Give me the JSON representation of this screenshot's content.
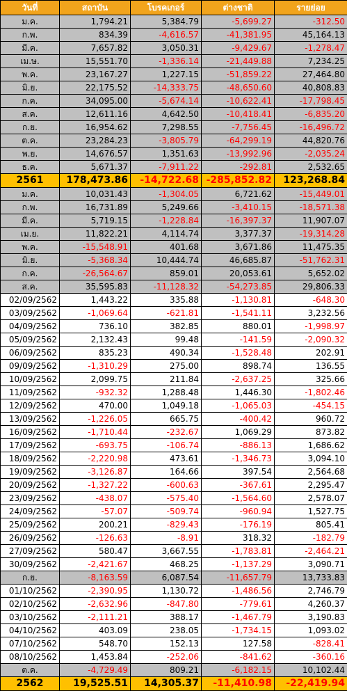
{
  "headers": [
    "วันที่",
    "สถาบัน",
    "โบรคเกอร์",
    "ต่างชาติ",
    "รายย่อย"
  ],
  "rows": [
    {
      "type": "month",
      "label": "ม.ค.",
      "values": [
        "1,794.21",
        "5,384.79",
        "-5,699.27",
        "-312.50"
      ]
    },
    {
      "type": "month",
      "label": "ก.พ.",
      "values": [
        "834.39",
        "-4,616.57",
        "-41,381.95",
        "45,164.13"
      ]
    },
    {
      "type": "month",
      "label": "มี.ค.",
      "values": [
        "7,657.82",
        "3,050.31",
        "-9,429.67",
        "-1,278.47"
      ]
    },
    {
      "type": "month",
      "label": "เม.ษ.",
      "values": [
        "15,551.70",
        "-1,336.14",
        "-21,449.88",
        "7,234.25"
      ]
    },
    {
      "type": "month",
      "label": "พ.ค.",
      "values": [
        "23,167.27",
        "1,227.15",
        "-51,859.22",
        "27,464.80"
      ]
    },
    {
      "type": "month",
      "label": "มิ.ย.",
      "values": [
        "22,175.52",
        "-14,333.75",
        "-48,650.60",
        "40,808.83"
      ]
    },
    {
      "type": "month",
      "label": "ก.ค.",
      "values": [
        "34,095.00",
        "-5,674.14",
        "-10,622.41",
        "-17,798.45"
      ]
    },
    {
      "type": "month",
      "label": "ส.ค.",
      "values": [
        "12,611.16",
        "4,642.50",
        "-10,418.41",
        "-6,835.20"
      ]
    },
    {
      "type": "month",
      "label": "ก.ย.",
      "values": [
        "16,954.62",
        "7,298.55",
        "-7,756.45",
        "-16,496.72"
      ]
    },
    {
      "type": "month",
      "label": "ต.ค.",
      "values": [
        "23,284.23",
        "-3,805.79",
        "-64,299.19",
        "44,820.76"
      ]
    },
    {
      "type": "month",
      "label": "พ.ย.",
      "values": [
        "14,676.57",
        "1,351.63",
        "-13,992.96",
        "-2,035.24"
      ]
    },
    {
      "type": "month",
      "label": "ธ.ค.",
      "values": [
        "5,671.37",
        "-7,911.22",
        "-292.81",
        "2,532.65"
      ]
    },
    {
      "type": "year",
      "label": "2561",
      "values": [
        "178,473.86",
        "-14,722.68",
        "-285,852.82",
        "123,268.84"
      ]
    },
    {
      "type": "month",
      "label": "ม.ค.",
      "values": [
        "10,031.43",
        "-1,304.05",
        "6,721.62",
        "-15,449.01"
      ]
    },
    {
      "type": "month",
      "label": "ก.พ.",
      "values": [
        "16,731.89",
        "5,249.66",
        "-3,410.15",
        "-18,571.38"
      ]
    },
    {
      "type": "month",
      "label": "มี.ค.",
      "values": [
        "5,719.15",
        "-1,228.84",
        "-16,397.37",
        "11,907.07"
      ]
    },
    {
      "type": "month",
      "label": "เม.ย.",
      "values": [
        "11,822.21",
        "4,114.74",
        "3,377.37",
        "-19,314.28"
      ]
    },
    {
      "type": "month",
      "label": "พ.ค.",
      "values": [
        "-15,548.91",
        "401.68",
        "3,671.86",
        "11,475.35"
      ]
    },
    {
      "type": "month",
      "label": "มิ.ย.",
      "values": [
        "-5,368.34",
        "10,444.74",
        "46,685.87",
        "-51,762.31"
      ]
    },
    {
      "type": "month",
      "label": "ก.ค.",
      "values": [
        "-26,564.67",
        "859.01",
        "20,053.61",
        "5,652.02"
      ]
    },
    {
      "type": "month",
      "label": "ส.ค.",
      "values": [
        "35,595.83",
        "-11,128.32",
        "-54,273.85",
        "29,806.33"
      ]
    },
    {
      "type": "day",
      "label": "02/09/2562",
      "values": [
        "1,443.22",
        "335.88",
        "-1,130.81",
        "-648.30"
      ]
    },
    {
      "type": "day",
      "label": "03/09/2562",
      "values": [
        "-1,069.64",
        "-621.81",
        "-1,541.11",
        "3,232.56"
      ]
    },
    {
      "type": "day",
      "label": "04/09/2562",
      "values": [
        "736.10",
        "382.85",
        "880.01",
        "-1,998.97"
      ]
    },
    {
      "type": "day",
      "label": "05/09/2562",
      "values": [
        "2,132.43",
        "99.48",
        "-141.59",
        "-2,090.32"
      ]
    },
    {
      "type": "day",
      "label": "06/09/2562",
      "values": [
        "835.23",
        "490.34",
        "-1,528.48",
        "202.91"
      ]
    },
    {
      "type": "day",
      "label": "09/09/2562",
      "values": [
        "-1,310.29",
        "275.00",
        "898.74",
        "136.55"
      ]
    },
    {
      "type": "day",
      "label": "10/09/2562",
      "values": [
        "2,099.75",
        "211.84",
        "-2,637.25",
        "325.66"
      ]
    },
    {
      "type": "day",
      "label": "11/09/2562",
      "values": [
        "-932.32",
        "1,288.48",
        "1,446.30",
        "-1,802.46"
      ]
    },
    {
      "type": "day",
      "label": "12/09/2562",
      "values": [
        "470.00",
        "1,049.18",
        "-1,065.03",
        "-454.15"
      ]
    },
    {
      "type": "day",
      "label": "13/09/2562",
      "values": [
        "-1,226.05",
        "665.75",
        "-400.42",
        "960.72"
      ]
    },
    {
      "type": "day",
      "label": "16/09/2562",
      "values": [
        "-1,710.44",
        "-232.67",
        "1,069.29",
        "873.82"
      ]
    },
    {
      "type": "day",
      "label": "17/09/2562",
      "values": [
        "-693.75",
        "-106.74",
        "-886.13",
        "1,686.62"
      ]
    },
    {
      "type": "day",
      "label": "18/09/2562",
      "values": [
        "-2,220.98",
        "473.61",
        "-1,346.73",
        "3,094.10"
      ]
    },
    {
      "type": "day",
      "label": "19/09/2562",
      "values": [
        "-3,126.87",
        "164.66",
        "397.54",
        "2,564.68"
      ]
    },
    {
      "type": "day",
      "label": "20/09/2562",
      "values": [
        "-1,327.22",
        "-600.63",
        "-367.61",
        "2,295.47"
      ]
    },
    {
      "type": "day",
      "label": "23/09/2562",
      "values": [
        "-438.07",
        "-575.40",
        "-1,564.60",
        "2,578.07"
      ]
    },
    {
      "type": "day",
      "label": "24/09/2562",
      "values": [
        "-57.07",
        "-509.74",
        "-960.94",
        "1,527.75"
      ]
    },
    {
      "type": "day",
      "label": "25/09/2562",
      "values": [
        "200.21",
        "-829.43",
        "-176.19",
        "805.41"
      ]
    },
    {
      "type": "day",
      "label": "26/09/2562",
      "values": [
        "-126.63",
        "-8.91",
        "318.32",
        "-182.79"
      ]
    },
    {
      "type": "day",
      "label": "27/09/2562",
      "values": [
        "580.47",
        "3,667.55",
        "-1,783.81",
        "-2,464.21"
      ]
    },
    {
      "type": "day",
      "label": "30/09/2562",
      "values": [
        "-2,421.67",
        "468.25",
        "-1,137.29",
        "3,090.71"
      ]
    },
    {
      "type": "month",
      "label": "ก.ย.",
      "values": [
        "-8,163.59",
        "6,087.54",
        "-11,657.79",
        "13,733.83"
      ]
    },
    {
      "type": "day",
      "label": "01/10/2562",
      "values": [
        "-2,390.95",
        "1,130.72",
        "-1,486.56",
        "2,746.79"
      ]
    },
    {
      "type": "day",
      "label": "02/10/2562",
      "values": [
        "-2,632.96",
        "-847.80",
        "-779.61",
        "4,260.37"
      ]
    },
    {
      "type": "day",
      "label": "03/10/2562",
      "values": [
        "-2,111.21",
        "388.17",
        "-1,467.79",
        "3,190.83"
      ]
    },
    {
      "type": "day",
      "label": "04/10/2562",
      "values": [
        "403.09",
        "238.05",
        "-1,734.15",
        "1,093.02"
      ]
    },
    {
      "type": "day",
      "label": "07/10/2562",
      "values": [
        "548.70",
        "152.13",
        "127.58",
        "-828.41"
      ]
    },
    {
      "type": "day",
      "label": "08/10/2562",
      "values": [
        "1,453.84",
        "-252.06",
        "-841.62",
        "-360.16"
      ]
    },
    {
      "type": "month",
      "label": "ต.ค.",
      "values": [
        "-4,729.49",
        "809.21",
        "-6,182.15",
        "10,102.44"
      ]
    },
    {
      "type": "year",
      "label": "2562",
      "values": [
        "19,525.51",
        "14,305.37",
        "-11,410.98",
        "-22,419.94"
      ]
    }
  ]
}
